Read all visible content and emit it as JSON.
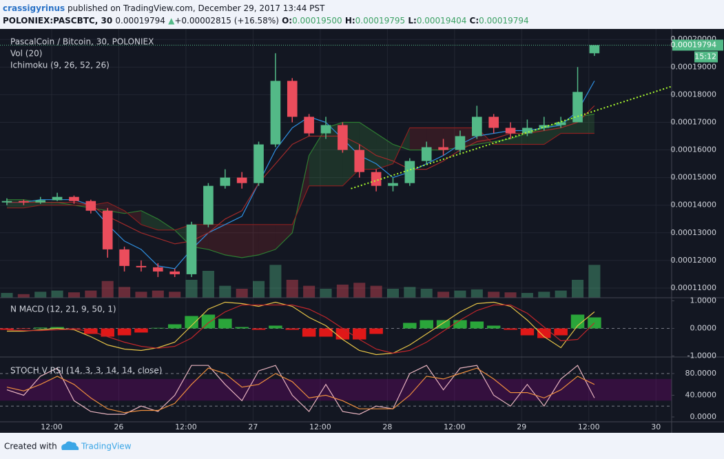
{
  "header": {
    "author": "crassigyrinus",
    "published": "published on TradingView.com, December 29, 2017 13:44 PST",
    "symbol": "POLONIEX:PASCBTC, 30",
    "last": "0.00019794",
    "change": "+0.00002815 (+16.58%)",
    "ohlc": [
      {
        "label": "O:",
        "value": "0.00019500"
      },
      {
        "label": "H:",
        "value": "0.00019795"
      },
      {
        "label": "L:",
        "value": "0.00019404"
      },
      {
        "label": "C:",
        "value": "0.00019794"
      }
    ]
  },
  "chart_data": [
    {
      "type": "candlestick",
      "title": "PascalCoin / Bitcoin, 30, POLONIEX",
      "indicators": [
        "Vol (20)",
        "Ichimoku (9, 26, 52, 26)"
      ],
      "x": [
        4,
        7,
        10,
        13,
        16,
        19,
        22,
        25,
        28,
        31,
        34,
        37,
        40,
        43,
        46,
        49,
        52,
        55,
        58,
        61,
        64,
        67,
        70,
        73,
        76,
        79,
        82,
        85,
        88,
        91,
        94,
        97,
        100,
        103,
        106,
        109
      ],
      "open": [
        0.000141,
        0.0001415,
        0.000141,
        0.0001418,
        0.000143,
        0.0001415,
        0.000138,
        0.000124,
        0.000118,
        0.0001175,
        0.000116,
        0.000115,
        0.000133,
        0.000147,
        0.00015,
        0.000148,
        0.000162,
        0.000185,
        0.000172,
        0.000166,
        0.000169,
        0.00016,
        0.000152,
        0.000147,
        0.000148,
        0.000156,
        0.000161,
        0.00016,
        0.000165,
        0.000172,
        0.000168,
        0.000166,
        0.000168,
        0.000169,
        0.00017,
        0.000195
      ],
      "high": [
        0.0001425,
        0.000142,
        0.000143,
        0.0001445,
        0.0001435,
        0.000142,
        0.000139,
        0.000125,
        0.00012,
        0.000119,
        0.000117,
        0.000134,
        0.000148,
        0.000153,
        0.000152,
        0.000163,
        0.000195,
        0.000186,
        0.000173,
        0.000172,
        0.00017,
        0.000162,
        0.000153,
        0.00015,
        0.000157,
        0.000163,
        0.000164,
        0.000167,
        0.000176,
        0.000173,
        0.00017,
        0.000171,
        0.000172,
        0.000172,
        0.00019,
        0.00019795
      ],
      "low": [
        0.00014,
        0.00014,
        0.0001405,
        0.0001415,
        0.0001405,
        0.000137,
        0.000121,
        0.000116,
        0.000116,
        0.000114,
        0.000114,
        0.000114,
        0.000132,
        0.000146,
        0.000146,
        0.000147,
        0.000161,
        0.00017,
        0.000165,
        0.000164,
        0.000159,
        0.00015,
        0.000145,
        0.000145,
        0.000147,
        0.000155,
        0.000158,
        0.000159,
        0.000164,
        0.000166,
        0.000164,
        0.000165,
        0.000167,
        0.000168,
        0.00017,
        0.00019404
      ],
      "close": [
        0.0001415,
        0.000141,
        0.0001418,
        0.000143,
        0.0001415,
        0.000138,
        0.000124,
        0.000118,
        0.0001175,
        0.000116,
        0.000115,
        0.000133,
        0.000147,
        0.00015,
        0.000148,
        0.000162,
        0.000185,
        0.000172,
        0.000166,
        0.000169,
        0.00016,
        0.000152,
        0.000147,
        0.000148,
        0.000156,
        0.000161,
        0.00016,
        0.000165,
        0.000172,
        0.000168,
        0.000166,
        0.000168,
        0.000169,
        0.00017,
        0.000181,
        0.00019794
      ],
      "volume": [
        8,
        6,
        10,
        12,
        9,
        12,
        28,
        18,
        10,
        12,
        10,
        30,
        45,
        20,
        15,
        28,
        55,
        30,
        20,
        15,
        22,
        25,
        20,
        15,
        18,
        15,
        10,
        12,
        14,
        10,
        9,
        8,
        10,
        12,
        30,
        55
      ],
      "vlim": [
        0,
        450
      ],
      "tenkan": [
        0.000141,
        0.000141,
        0.000142,
        0.000142,
        0.000142,
        0.00014,
        0.000133,
        0.000127,
        0.000124,
        0.000118,
        0.000117,
        0.000124,
        0.00013,
        0.000133,
        0.000136,
        0.000148,
        0.00016,
        0.000168,
        0.000172,
        0.00017,
        0.000164,
        0.000158,
        0.000155,
        0.00015,
        0.000152,
        0.000155,
        0.000158,
        0.000162,
        0.000165,
        0.000166,
        0.000167,
        0.000167,
        0.000168,
        0.000169,
        0.000174,
        0.000185
      ],
      "kijun": [
        0.000141,
        0.000141,
        0.000141,
        0.000141,
        0.000141,
        0.00014,
        0.000136,
        0.000133,
        0.00013,
        0.000128,
        0.000126,
        0.000127,
        0.00013,
        0.000135,
        0.000138,
        0.000148,
        0.000155,
        0.000162,
        0.000165,
        0.000165,
        0.000165,
        0.000162,
        0.000158,
        0.000156,
        0.000153,
        0.000153,
        0.000156,
        0.00016,
        0.000163,
        0.000164,
        0.000166,
        0.000166,
        0.000167,
        0.000168,
        0.00017,
        0.000176
      ],
      "senkou_a": [
        0.000142,
        0.000142,
        0.000141,
        0.000141,
        0.00014,
        0.000139,
        0.000138,
        0.000137,
        0.000138,
        0.000135,
        0.000131,
        0.000125,
        0.000124,
        0.000122,
        0.000121,
        0.000122,
        0.000124,
        0.00013,
        0.000158,
        0.000168,
        0.00017,
        0.00017,
        0.000166,
        0.000162,
        0.00016,
        0.00016,
        0.00016,
        0.000161,
        0.000162,
        0.000163,
        0.000164,
        0.000166,
        0.000168,
        0.00017,
        0.000172,
        0.000173
      ],
      "senkou_b": [
        0.000139,
        0.000139,
        0.00014,
        0.00014,
        0.00014,
        0.00014,
        0.000141,
        0.000138,
        0.000133,
        0.000131,
        0.000131,
        0.000133,
        0.000133,
        0.000133,
        0.000133,
        0.000133,
        0.000133,
        0.000133,
        0.000147,
        0.000147,
        0.000147,
        0.000153,
        0.000153,
        0.000155,
        0.000168,
        0.000168,
        0.000168,
        0.000168,
        0.000168,
        0.000162,
        0.000162,
        0.000162,
        0.000162,
        0.000166,
        0.000166,
        0.000166
      ],
      "trendline": {
        "x": [
          65.5,
          122.8
        ],
        "values": [
          0.000146,
          0.000183
        ],
        "color": "#adff2f"
      },
      "up_color": "#53b987",
      "down_color": "#eb4d5c",
      "last_price": {
        "value": 0.00019794,
        "label": "0.00019794"
      },
      "countdown": "15:12",
      "xlim": [
        2.77,
        122.8
      ],
      "ylim": [
        0.0001065,
        0.0002038
      ],
      "yticks": [
        {
          "value": 0.00011,
          "label": "0.00011000"
        },
        {
          "value": 0.00012,
          "label": "0.00012000"
        },
        {
          "value": 0.00013,
          "label": "0.00013000"
        },
        {
          "value": 0.00014,
          "label": "0.00014000"
        },
        {
          "value": 0.00015,
          "label": "0.00015000"
        },
        {
          "value": 0.00016,
          "label": "0.00016000"
        },
        {
          "value": 0.00017,
          "label": "0.00017000"
        },
        {
          "value": 0.00018,
          "label": "0.00018000"
        },
        {
          "value": 0.00019,
          "label": "0.00019000"
        },
        {
          "value": 0.0002,
          "label": "0.00020000"
        }
      ],
      "grid": true
    },
    {
      "type": "line",
      "title": "N MACD (12, 21, 9, 50, 1)",
      "series": [
        {
          "color": "#e8c547",
          "values": [
            -0.1,
            -0.1,
            -0.05,
            0,
            -0.05,
            -0.3,
            -0.6,
            -0.75,
            -0.8,
            -0.7,
            -0.5,
            0.1,
            0.7,
            0.95,
            0.9,
            0.8,
            0.95,
            0.8,
            0.4,
            0.1,
            -0.4,
            -0.8,
            -0.95,
            -0.9,
            -0.6,
            -0.2,
            0.2,
            0.6,
            0.9,
            0.95,
            0.8,
            0.3,
            -0.3,
            -0.7,
            0.1,
            0.6
          ]
        },
        {
          "color": "#c0262b",
          "values": [
            -0.05,
            -0.08,
            -0.08,
            -0.05,
            -0.03,
            -0.1,
            -0.3,
            -0.5,
            -0.65,
            -0.72,
            -0.65,
            -0.35,
            0.2,
            0.6,
            0.85,
            0.85,
            0.85,
            0.85,
            0.7,
            0.4,
            0,
            -0.4,
            -0.75,
            -0.9,
            -0.8,
            -0.5,
            -0.1,
            0.3,
            0.65,
            0.85,
            0.85,
            0.55,
            0.05,
            -0.45,
            -0.4,
            0.2
          ]
        }
      ],
      "histogram": [
        -0.05,
        -0.02,
        0.03,
        0.05,
        -0.02,
        -0.2,
        -0.3,
        -0.25,
        -0.15,
        0.02,
        0.15,
        0.45,
        0.5,
        0.35,
        0.05,
        -0.05,
        0.1,
        -0.05,
        -0.3,
        -0.3,
        -0.4,
        -0.4,
        -0.2,
        0,
        0.2,
        0.3,
        0.3,
        0.3,
        0.25,
        0.1,
        -0.05,
        -0.25,
        -0.35,
        -0.25,
        0.5,
        0.4
      ],
      "ylim": [
        -1.0375,
        1.1125
      ],
      "yticks": [
        {
          "value": 1,
          "label": "1.0000"
        },
        {
          "value": 0,
          "label": "0.0000"
        },
        {
          "value": -1,
          "label": "-1.0000"
        }
      ]
    },
    {
      "type": "line",
      "title": "STOCH V RSI (14, 3, 3, 14, 14, close)",
      "series": [
        {
          "color": "#e8b4c0",
          "values": [
            50,
            40,
            75,
            90,
            30,
            10,
            5,
            5,
            20,
            10,
            40,
            95,
            95,
            60,
            30,
            85,
            95,
            40,
            10,
            60,
            10,
            5,
            20,
            15,
            80,
            95,
            50,
            90,
            95,
            40,
            20,
            60,
            20,
            70,
            95,
            35
          ]
        },
        {
          "color": "#ef8f3e",
          "values": [
            55,
            48,
            60,
            75,
            60,
            35,
            15,
            8,
            12,
            12,
            25,
            60,
            90,
            80,
            55,
            60,
            80,
            65,
            35,
            40,
            30,
            15,
            15,
            15,
            40,
            75,
            70,
            80,
            90,
            70,
            45,
            45,
            35,
            50,
            75,
            60
          ]
        }
      ],
      "band": [
        30,
        70
      ],
      "levels": [
        20,
        80
      ],
      "ylim": [
        -8.9,
        110.5
      ],
      "yticks": [
        {
          "value": 80,
          "label": "80.0000"
        },
        {
          "value": 40,
          "label": "40.0000"
        },
        {
          "value": 0,
          "label": "0.0000"
        }
      ],
      "xticks": [
        {
          "value": 12,
          "label": "12:00"
        },
        {
          "value": 24,
          "label": "26"
        },
        {
          "value": 36,
          "label": "12:00"
        },
        {
          "value": 48,
          "label": "27"
        },
        {
          "value": 60,
          "label": "12:00"
        },
        {
          "value": 72,
          "label": "28"
        },
        {
          "value": 84,
          "label": "12:00"
        },
        {
          "value": 96,
          "label": "29"
        },
        {
          "value": 108,
          "label": "12:00"
        },
        {
          "value": 120,
          "label": "30"
        }
      ]
    }
  ],
  "footer": {
    "created": "Created with",
    "brand": "TradingView"
  }
}
